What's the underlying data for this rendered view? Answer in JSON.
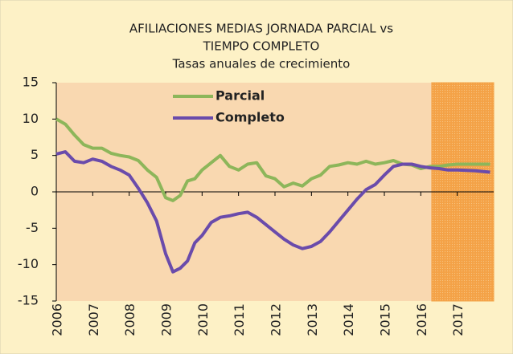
{
  "chart_data": {
    "type": "line",
    "title": [
      "AFILIACIONES MEDIAS JORNADA PARCIAL vs",
      "TIEMPO COMPLETO"
    ],
    "subtitle": "Tasas anuales de crecimiento",
    "x": [
      2006.0,
      2006.25,
      2006.5,
      2006.75,
      2007.0,
      2007.25,
      2007.5,
      2007.75,
      2008.0,
      2008.25,
      2008.5,
      2008.75,
      2009.0,
      2009.2,
      2009.4,
      2009.6,
      2009.8,
      2010.0,
      2010.25,
      2010.5,
      2010.75,
      2011.0,
      2011.25,
      2011.5,
      2011.75,
      2012.0,
      2012.25,
      2012.5,
      2012.75,
      2013.0,
      2013.25,
      2013.5,
      2013.75,
      2014.0,
      2014.25,
      2014.5,
      2014.75,
      2015.0,
      2015.25,
      2015.5,
      2015.75,
      2016.0,
      2016.25,
      2016.5,
      2016.75,
      2017.0,
      2017.5,
      2017.9
    ],
    "series": [
      {
        "name": "Parcial",
        "color": "#8db65a",
        "values": [
          10,
          9.3,
          7.8,
          6.5,
          6,
          6,
          5.3,
          5,
          4.8,
          4.3,
          3,
          2,
          -0.8,
          -1.2,
          -0.5,
          1.5,
          1.8,
          3,
          4,
          5,
          3.5,
          3,
          3.8,
          4,
          2.2,
          1.8,
          0.7,
          1.2,
          0.8,
          1.8,
          2.3,
          3.5,
          3.7,
          4,
          3.8,
          4.2,
          3.8,
          4,
          4.3,
          3.8,
          3.7,
          3.2,
          3.5,
          3.5,
          3.7,
          3.8,
          3.8,
          3.8
        ]
      },
      {
        "name": "Completo",
        "color": "#6a4bab",
        "values": [
          5.2,
          5.5,
          4.2,
          4,
          4.5,
          4.2,
          3.5,
          3,
          2.3,
          0.5,
          -1.5,
          -4,
          -8.5,
          -11,
          -10.5,
          -9.5,
          -7,
          -6,
          -4.2,
          -3.5,
          -3.3,
          -3,
          -2.8,
          -3.5,
          -4.5,
          -5.5,
          -6.5,
          -7.3,
          -7.8,
          -7.5,
          -6.8,
          -5.5,
          -4,
          -2.5,
          -1,
          0.3,
          1,
          2.3,
          3.5,
          3.8,
          3.8,
          3.5,
          3.3,
          3.2,
          3,
          3,
          2.9,
          2.7
        ]
      }
    ],
    "xlim": [
      2006,
      2018
    ],
    "xticks": [
      2006,
      2007,
      2008,
      2009,
      2010,
      2011,
      2012,
      2013,
      2014,
      2015,
      2016,
      2017
    ],
    "ylim": [
      -15,
      15
    ],
    "yticks": [
      15,
      10,
      5,
      0,
      -5,
      -10,
      -15
    ],
    "highlight": {
      "xlim": [
        2016.3,
        2018
      ],
      "color": "#f4a247"
    }
  }
}
